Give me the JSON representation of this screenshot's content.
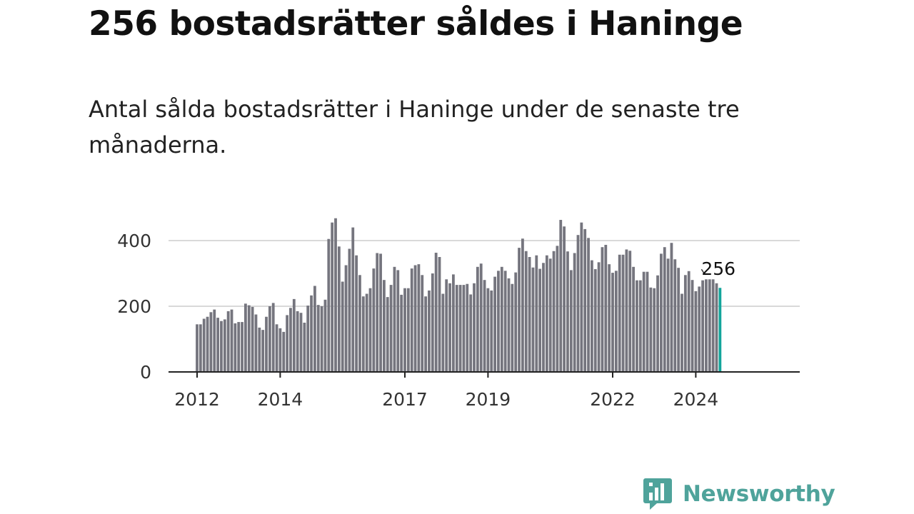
{
  "header": {
    "title": "256 bostadsrätter såldes i Haninge",
    "subtitle": "Antal sålda bostadsrätter i Haninge under de senaste tre månaderna."
  },
  "brand": {
    "name": "Newsworthy",
    "logo_icon": "newsworthy-bar-chart-icon",
    "color": "#4fa39b"
  },
  "colors": {
    "bar": "#75757e",
    "highlight": "#13a59b",
    "grid": "#d9d9d9",
    "axis": "#222222"
  },
  "chart_data": {
    "type": "bar",
    "title": "Antal sålda bostadsrätter i Haninge",
    "xlabel": "",
    "ylabel": "",
    "ylim": [
      0,
      490
    ],
    "yticks": [
      0,
      200,
      400
    ],
    "xticks": [
      "2012",
      "2014",
      "2017",
      "2019",
      "2022",
      "2024"
    ],
    "xtick_indices": [
      0,
      24,
      60,
      84,
      120,
      144
    ],
    "highlight_last": true,
    "last_label": "256",
    "values": [
      145,
      145,
      162,
      168,
      182,
      190,
      165,
      155,
      160,
      185,
      190,
      148,
      152,
      152,
      208,
      203,
      198,
      175,
      135,
      128,
      168,
      200,
      210,
      145,
      133,
      122,
      173,
      195,
      222,
      185,
      180,
      150,
      202,
      233,
      262,
      204,
      200,
      220,
      405,
      455,
      468,
      382,
      275,
      325,
      375,
      440,
      355,
      295,
      230,
      238,
      255,
      315,
      362,
      360,
      280,
      228,
      265,
      320,
      310,
      235,
      255,
      255,
      315,
      325,
      328,
      295,
      230,
      248,
      300,
      363,
      350,
      238,
      282,
      270,
      297,
      265,
      265,
      265,
      268,
      236,
      270,
      320,
      330,
      280,
      255,
      248,
      290,
      308,
      320,
      308,
      285,
      268,
      303,
      378,
      406,
      368,
      350,
      318,
      355,
      314,
      332,
      355,
      345,
      368,
      384,
      463,
      443,
      367,
      310,
      362,
      417,
      455,
      435,
      408,
      340,
      313,
      334,
      380,
      387,
      328,
      302,
      308,
      357,
      357,
      373,
      369,
      320,
      279,
      279,
      305,
      305,
      257,
      255,
      294,
      360,
      380,
      345,
      393,
      343,
      317,
      238,
      295,
      307,
      280,
      246,
      260,
      279,
      282,
      282,
      282,
      270,
      256
    ]
  }
}
